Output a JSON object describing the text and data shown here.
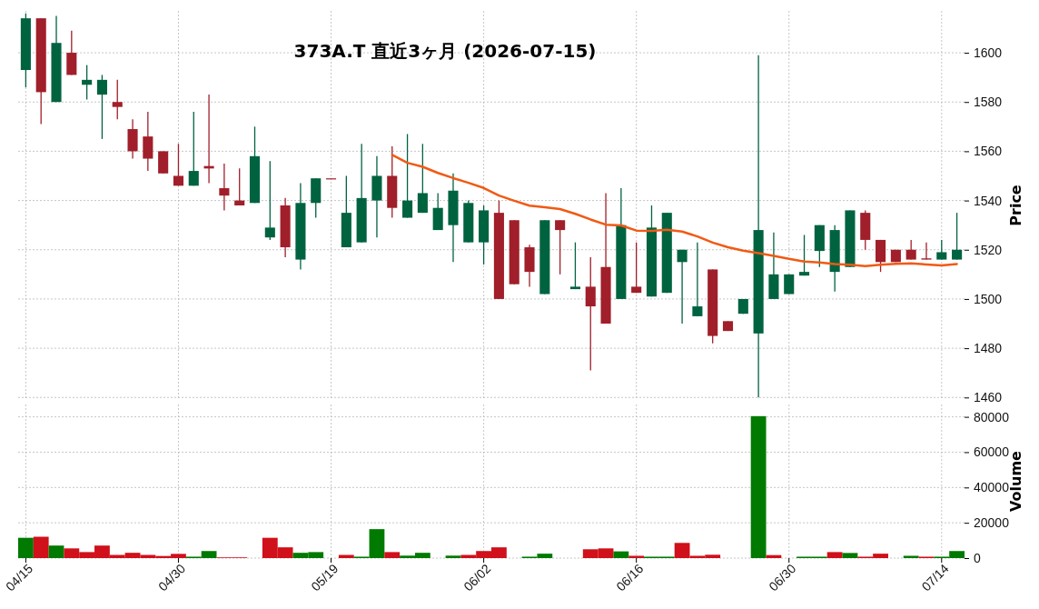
{
  "chart_data": [
    {
      "type": "candlestick",
      "title": "373A.T 直近3ヶ月 (2026-07-15)",
      "ylabel": "Price",
      "categories": [
        null,
        null,
        null,
        null,
        null,
        null,
        null,
        null,
        null,
        null,
        null,
        null,
        null,
        null,
        null,
        null,
        null,
        null,
        null,
        null,
        null,
        null,
        null,
        null,
        null,
        null,
        null,
        null,
        null,
        null,
        null,
        null,
        null,
        null,
        null,
        null,
        null,
        null,
        null,
        null,
        null,
        null,
        null,
        null,
        null,
        null,
        null,
        null,
        null,
        null,
        null,
        null,
        null,
        null,
        null,
        null,
        null,
        null,
        null,
        null,
        null,
        null
      ],
      "ohlc": [
        [
          1593,
          1616,
          1586,
          1614
        ],
        [
          1614,
          1614,
          1571,
          1584
        ],
        [
          1580,
          1615,
          1580,
          1604
        ],
        [
          1600,
          1609,
          1591,
          1591
        ],
        [
          1587,
          1595,
          1581,
          1589
        ],
        [
          1583,
          1591,
          1565,
          1589
        ],
        [
          1580,
          1589,
          1573,
          1578
        ],
        [
          1569,
          1573,
          1557,
          1560
        ],
        [
          1566,
          1576,
          1552,
          1557
        ],
        [
          1560,
          1560,
          1551,
          1551
        ],
        [
          1550,
          1563,
          1546,
          1546
        ],
        [
          1546,
          1576,
          1546,
          1552
        ],
        [
          1554,
          1583,
          1547,
          1553
        ],
        [
          1545,
          1555,
          1536,
          1542
        ],
        [
          1540,
          1553,
          1538,
          1538
        ],
        [
          1539,
          1570,
          1539,
          1558
        ],
        [
          1525,
          1556,
          1524,
          1529
        ],
        [
          1538,
          1541,
          1517,
          1521
        ],
        [
          1516,
          1547,
          1512,
          1539
        ],
        [
          1539,
          1549,
          1533,
          1549
        ],
        [
          1549,
          1549,
          1549,
          1549
        ],
        [
          1521,
          1550,
          1521,
          1535
        ],
        [
          1523,
          1563,
          1523,
          1541
        ],
        [
          1540,
          1558,
          1525,
          1550
        ],
        [
          1550,
          1562,
          1533,
          1537
        ],
        [
          1533,
          1567,
          1533,
          1540
        ],
        [
          1535,
          1563,
          1535,
          1543
        ],
        [
          1528,
          1543,
          1528,
          1537
        ],
        [
          1530,
          1551,
          1515,
          1544
        ],
        [
          1523,
          1540,
          1523,
          1539
        ],
        [
          1523,
          1538,
          1514,
          1536
        ],
        [
          1535,
          1540,
          1500,
          1500
        ],
        [
          1532,
          1532,
          1506,
          1506
        ],
        [
          1521,
          1522,
          1505,
          1511
        ],
        [
          1502,
          1532,
          1502,
          1532
        ],
        [
          1532,
          1532,
          1510,
          1528
        ],
        [
          1504,
          1523,
          1504,
          1505
        ],
        [
          1505,
          1517,
          1471,
          1497
        ],
        [
          1513,
          1543,
          1490,
          1490
        ],
        [
          1500,
          1545,
          1500,
          1530
        ],
        [
          1505,
          1523,
          1502.5,
          1502.5
        ],
        [
          1501,
          1538,
          1501,
          1529
        ],
        [
          1502.5,
          1535,
          1502.5,
          1535
        ],
        [
          1515,
          1520,
          1490,
          1520
        ],
        [
          1493,
          1523,
          1493,
          1497
        ],
        [
          1512,
          1512,
          1482,
          1485
        ],
        [
          1491,
          1491,
          1487,
          1487
        ],
        [
          1494,
          1500,
          1494,
          1500
        ],
        [
          1486,
          1599,
          1460,
          1528
        ],
        [
          1500,
          1527,
          1500,
          1510
        ],
        [
          1502,
          1510,
          1502,
          1510
        ],
        [
          1509.5,
          1526,
          1509.5,
          1511
        ],
        [
          1519.5,
          1530,
          1513,
          1530
        ],
        [
          1511,
          1530,
          1503,
          1528
        ],
        [
          1513,
          1536,
          1513,
          1536
        ],
        [
          1535,
          1536,
          1520,
          1524
        ],
        [
          1524,
          1524,
          1511,
          1515
        ],
        [
          1520,
          1520,
          1515,
          1515
        ],
        [
          1520,
          1524,
          1516,
          1516
        ],
        [
          1516.5,
          1523,
          1516,
          1516
        ],
        [
          1516,
          1524,
          1516,
          1519
        ],
        [
          1516,
          1535,
          1516,
          1520
        ]
      ],
      "colors": [
        "#006340",
        "#a01f2a",
        "#006340",
        "#a01f2a",
        "#006340",
        "#006340",
        "#a01f2a",
        "#a01f2a",
        "#a01f2a",
        "#a01f2a",
        "#a01f2a",
        "#006340",
        "#a01f2a",
        "#a01f2a",
        "#a01f2a",
        "#006340",
        "#006340",
        "#a01f2a",
        "#006340",
        "#006340",
        "#a01f2a",
        "#006340",
        "#006340",
        "#006340",
        "#a01f2a",
        "#006340",
        "#006340",
        "#006340",
        "#006340",
        "#006340",
        "#006340",
        "#a01f2a",
        "#a01f2a",
        "#a01f2a",
        "#006340",
        "#a01f2a",
        "#006340",
        "#a01f2a",
        "#a01f2a",
        "#006340",
        "#a01f2a",
        "#006340",
        "#006340",
        "#006340",
        "#006340",
        "#a01f2a",
        "#a01f2a",
        "#006340",
        "#006340",
        "#006340",
        "#006340",
        "#006340",
        "#006340",
        "#006340",
        "#006340",
        "#a01f2a",
        "#a01f2a",
        "#a01f2a",
        "#a01f2a",
        "#a01f2a",
        "#006340",
        "#006340"
      ],
      "series": [
        {
          "type": "line",
          "color": "#f05a14",
          "values": [
            null,
            null,
            null,
            null,
            null,
            null,
            null,
            null,
            null,
            null,
            null,
            null,
            null,
            null,
            null,
            null,
            null,
            null,
            null,
            null,
            null,
            null,
            null,
            null,
            1558.5,
            1555.3,
            1553.7,
            1551.2,
            1549.1,
            1547.2,
            1545.1,
            1542,
            1539.9,
            1537.9,
            1537.3,
            1536.5,
            1534.6,
            1532.3,
            1530.2,
            1529.9,
            1527.8,
            1527.7,
            1528.1,
            1527.4,
            1525.4,
            1522.9,
            1521,
            1519.6,
            1518.6,
            1517.5,
            1516.3,
            1515.2,
            1514.8,
            1514.2,
            1513.9,
            1513.4,
            1513.9,
            1514.3,
            1514.5,
            1514,
            1513.6,
            1514.2
          ]
        }
      ],
      "ylim": [
        1459,
        1617
      ],
      "yticks": [
        1460,
        1480,
        1500,
        1520,
        1540,
        1560,
        1580,
        1600
      ],
      "grid": true,
      "tick_labels": "y"
    },
    {
      "type": "bar",
      "ylabel": "Volume",
      "categories": [
        "04/15",
        null,
        null,
        null,
        null,
        null,
        null,
        null,
        null,
        null,
        "04/30",
        null,
        null,
        null,
        null,
        null,
        null,
        null,
        null,
        null,
        "05/19",
        null,
        null,
        null,
        null,
        null,
        null,
        null,
        null,
        null,
        "06/02",
        null,
        null,
        null,
        null,
        null,
        null,
        null,
        null,
        null,
        "06/16",
        null,
        null,
        null,
        null,
        null,
        null,
        null,
        null,
        null,
        "06/30",
        null,
        null,
        null,
        null,
        null,
        null,
        null,
        null,
        null,
        "07/14",
        null
      ],
      "values": [
        11500,
        12100,
        7100,
        5500,
        3400,
        7100,
        1800,
        3000,
        1800,
        1200,
        2400,
        800,
        4000,
        400,
        400,
        0,
        11500,
        6100,
        3000,
        3400,
        0,
        1800,
        800,
        16400,
        3400,
        1400,
        3000,
        0,
        1400,
        1800,
        4000,
        6100,
        0,
        800,
        2500,
        0,
        0,
        5000,
        5500,
        3800,
        1300,
        800,
        800,
        8600,
        1300,
        1900,
        0,
        0,
        80400,
        1700,
        0,
        800,
        800,
        3400,
        2900,
        800,
        2500,
        0,
        1300,
        800,
        800,
        4000
      ],
      "colors": [
        "#007a00",
        "#d0101a",
        "#007a00",
        "#d0101a",
        "#d0101a",
        "#d0101a",
        "#d0101a",
        "#d0101a",
        "#d0101a",
        "#d0101a",
        "#d0101a",
        "#007a00",
        "#007a00",
        "#d0101a",
        "#d0101a",
        "#007a00",
        "#d0101a",
        "#d0101a",
        "#007a00",
        "#007a00",
        "#007a00",
        "#d0101a",
        "#007a00",
        "#007a00",
        "#d0101a",
        "#007a00",
        "#007a00",
        "#d0101a",
        "#007a00",
        "#d0101a",
        "#d0101a",
        "#d0101a",
        "#007a00",
        "#007a00",
        "#007a00",
        "#d0101a",
        "#d0101a",
        "#d0101a",
        "#d0101a",
        "#007a00",
        "#d0101a",
        "#007a00",
        "#007a00",
        "#d0101a",
        "#d0101a",
        "#d0101a",
        "#d0101a",
        "#007a00",
        "#007a00",
        "#d0101a",
        "#007a00",
        "#007a00",
        "#007a00",
        "#d0101a",
        "#007a00",
        "#d0101a",
        "#d0101a",
        "#007a00",
        "#007a00",
        "#d0101a",
        "#007a00",
        "#007a00"
      ],
      "ylim": [
        0,
        87000
      ],
      "yticks": [
        0,
        20000,
        40000,
        60000,
        80000
      ],
      "grid": true
    }
  ]
}
